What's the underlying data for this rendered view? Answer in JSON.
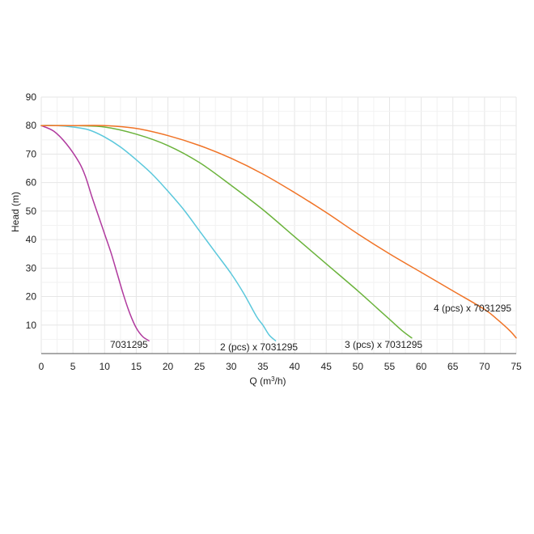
{
  "chart_data": {
    "type": "line",
    "xlabel_base": "Q (m",
    "xlabel_sup": "3",
    "xlabel_tail": "/h)",
    "ylabel": "Head (m)",
    "xlim": [
      0,
      75
    ],
    "ylim": [
      0,
      90
    ],
    "x_ticks": [
      0,
      5,
      10,
      15,
      20,
      25,
      30,
      35,
      40,
      45,
      50,
      55,
      60,
      65,
      70,
      75
    ],
    "y_ticks": [
      10,
      20,
      30,
      40,
      50,
      60,
      70,
      80,
      90
    ],
    "grid": true,
    "series": [
      {
        "name": "7031295",
        "color": "#b03a9e",
        "points": [
          [
            0,
            80
          ],
          [
            2,
            78
          ],
          [
            4,
            73.5
          ],
          [
            6,
            67
          ],
          [
            7,
            62
          ],
          [
            8,
            55
          ],
          [
            9,
            48.5
          ],
          [
            10,
            42
          ],
          [
            11,
            35.5
          ],
          [
            12,
            28
          ],
          [
            13,
            20.5
          ],
          [
            14,
            14
          ],
          [
            15,
            9
          ],
          [
            16,
            6
          ],
          [
            17,
            4.5
          ]
        ]
      },
      {
        "name": "2 (pcs) x 7031295",
        "color": "#5bc8dc",
        "points": [
          [
            0,
            80
          ],
          [
            2.5,
            80
          ],
          [
            5,
            79.5
          ],
          [
            7.5,
            78.5
          ],
          [
            10,
            76
          ],
          [
            12.5,
            72.5
          ],
          [
            15,
            68
          ],
          [
            17.5,
            63
          ],
          [
            20,
            57
          ],
          [
            22.5,
            50.5
          ],
          [
            25,
            43
          ],
          [
            27.5,
            35.5
          ],
          [
            30,
            28
          ],
          [
            32,
            21
          ],
          [
            34,
            13
          ],
          [
            35,
            10
          ],
          [
            36,
            6.5
          ],
          [
            37,
            4.5
          ]
        ]
      },
      {
        "name": "3 (pcs) x 7031295",
        "color": "#6bb33c",
        "points": [
          [
            0,
            80
          ],
          [
            5,
            80
          ],
          [
            10,
            79.5
          ],
          [
            15,
            77
          ],
          [
            20,
            73
          ],
          [
            25,
            67
          ],
          [
            30,
            59
          ],
          [
            35,
            50.5
          ],
          [
            40,
            41
          ],
          [
            45,
            31.5
          ],
          [
            50,
            22
          ],
          [
            53,
            16
          ],
          [
            55,
            12
          ],
          [
            57,
            8
          ],
          [
            58.5,
            5.5
          ]
        ]
      },
      {
        "name": "4 (pcs) x 7031295",
        "color": "#f07326",
        "points": [
          [
            0,
            80
          ],
          [
            5,
            80
          ],
          [
            10,
            80
          ],
          [
            15,
            79
          ],
          [
            20,
            76.5
          ],
          [
            25,
            73
          ],
          [
            30,
            68.5
          ],
          [
            35,
            63
          ],
          [
            40,
            56.5
          ],
          [
            45,
            49.5
          ],
          [
            50,
            42
          ],
          [
            55,
            35
          ],
          [
            60,
            28.5
          ],
          [
            65,
            22
          ],
          [
            70,
            15.5
          ],
          [
            72,
            12
          ],
          [
            74,
            8
          ],
          [
            75,
            5.5
          ]
        ]
      }
    ],
    "labels": {
      "series_0": "7031295",
      "series_1": "2 (pcs) x 7031295",
      "series_2": "3 (pcs) x 7031295",
      "series_3": "4 (pcs) x 7031295"
    }
  }
}
